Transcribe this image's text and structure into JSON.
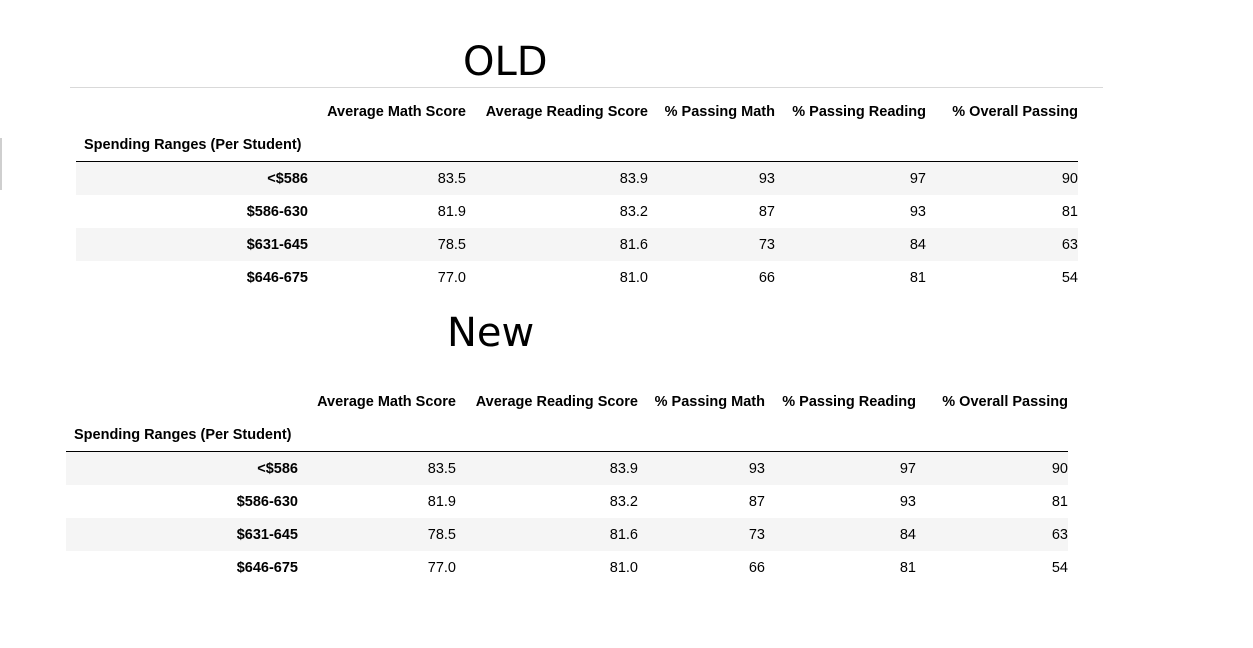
{
  "sections": [
    {
      "title": "OLD",
      "index_name": "Spending Ranges (Per Student)",
      "columns": [
        "Average Math Score",
        "Average Reading Score",
        "% Passing Math",
        "% Passing Reading",
        "% Overall Passing"
      ],
      "rows": [
        {
          "label": "<$586",
          "values": [
            "83.5",
            "83.9",
            "93",
            "97",
            "90"
          ]
        },
        {
          "label": "$586-630",
          "values": [
            "81.9",
            "83.2",
            "87",
            "93",
            "81"
          ]
        },
        {
          "label": "$631-645",
          "values": [
            "78.5",
            "81.6",
            "73",
            "84",
            "63"
          ]
        },
        {
          "label": "$646-675",
          "values": [
            "77.0",
            "81.0",
            "66",
            "81",
            "54"
          ]
        }
      ]
    },
    {
      "title": "New",
      "index_name": "Spending Ranges (Per Student)",
      "columns": [
        "Average Math Score",
        "Average Reading Score",
        "% Passing Math",
        "% Passing Reading",
        "% Overall Passing"
      ],
      "rows": [
        {
          "label": "<$586",
          "values": [
            "83.5",
            "83.9",
            "93",
            "97",
            "90"
          ]
        },
        {
          "label": "$586-630",
          "values": [
            "81.9",
            "83.2",
            "87",
            "93",
            "81"
          ]
        },
        {
          "label": "$631-645",
          "values": [
            "78.5",
            "81.6",
            "73",
            "84",
            "63"
          ]
        },
        {
          "label": "$646-675",
          "values": [
            "77.0",
            "81.0",
            "66",
            "81",
            "54"
          ]
        }
      ]
    }
  ],
  "colors": {
    "row_stripe": "#f5f5f5",
    "header_rule": "#000000",
    "divider": "#d9d9d9"
  }
}
